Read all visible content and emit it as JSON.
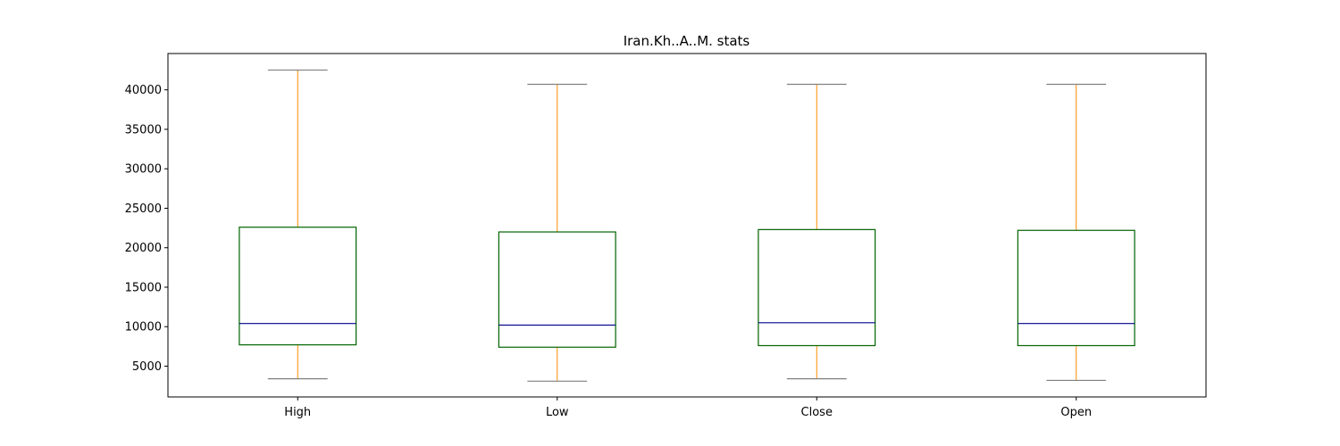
{
  "chart_data": {
    "type": "box",
    "title": "Iran.Kh..A..M. stats",
    "xlabel": "",
    "ylabel": "",
    "categories": [
      "High",
      "Low",
      "Close",
      "Open"
    ],
    "boxes": [
      {
        "name": "High",
        "whisker_low": 3400,
        "q1": 7700,
        "median": 10400,
        "q3": 22600,
        "whisker_high": 42500
      },
      {
        "name": "Low",
        "whisker_low": 3100,
        "q1": 7400,
        "median": 10200,
        "q3": 22000,
        "whisker_high": 40700
      },
      {
        "name": "Close",
        "whisker_low": 3400,
        "q1": 7600,
        "median": 10500,
        "q3": 22300,
        "whisker_high": 40700
      },
      {
        "name": "Open",
        "whisker_low": 3200,
        "q1": 7600,
        "median": 10400,
        "q3": 22200,
        "whisker_high": 40700
      }
    ],
    "yticks": [
      5000,
      10000,
      15000,
      20000,
      25000,
      30000,
      35000,
      40000
    ],
    "ylim": [
      1100,
      44600
    ],
    "grid": false,
    "legend": "none",
    "colors": {
      "box": "#006400",
      "median": "#00008b",
      "whisker": "#ff8c00",
      "cap": "#808080",
      "axes": "#000000"
    }
  }
}
